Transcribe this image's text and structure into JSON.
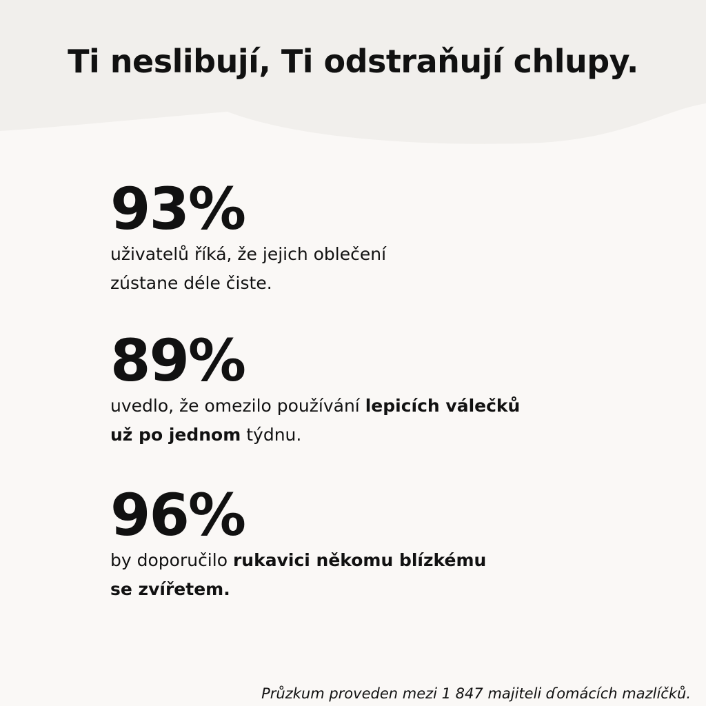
{
  "title": "Ti neslibují, Ti odstraňují chlupy.",
  "stats": [
    {
      "figure": "93%",
      "lines": [
        [
          {
            "text": "uživatelů říká, že jejich oblečení",
            "bold": false
          }
        ],
        [
          {
            "text": "zústane déle čiste.",
            "bold": false
          }
        ]
      ]
    },
    {
      "figure": "89%",
      "lines": [
        [
          {
            "text": "uvedlo, že omezilo používání ",
            "bold": false
          },
          {
            "text": "lepicích válečků",
            "bold": true
          }
        ],
        [
          {
            "text": "už po jednom",
            "bold": true
          },
          {
            "text": " týdnu.",
            "bold": false
          }
        ]
      ]
    },
    {
      "figure": "96%",
      "lines": [
        [
          {
            "text": "by doporučilo ",
            "bold": false
          },
          {
            "text": "rukavici někomu blízkému",
            "bold": true
          }
        ],
        [
          {
            "text": "se zvířetem.",
            "bold": true
          }
        ]
      ]
    }
  ],
  "footnote": "Průzkum proveden mezi 1 847 majiteli ɗomácích mazlíčků."
}
